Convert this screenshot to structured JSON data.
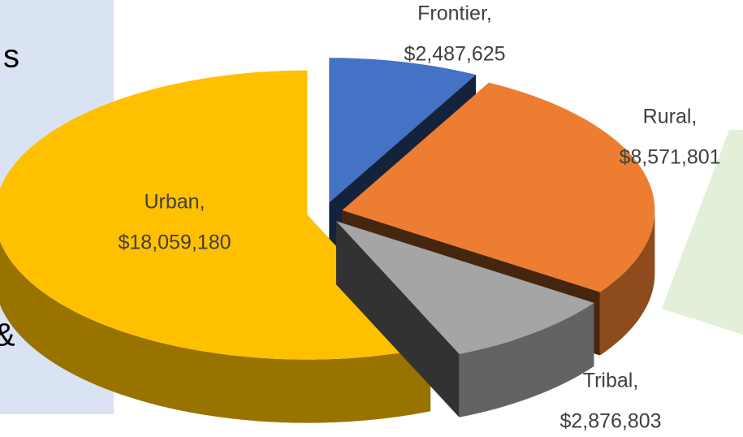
{
  "chart_data": {
    "type": "pie3d",
    "categories": [
      "Frontier,",
      "Rural,",
      "Tribal,",
      "Urban,"
    ],
    "values": [
      2487625,
      8571801,
      2876803,
      18059180
    ],
    "value_labels": [
      "$2,487,625",
      "$8,571,801",
      "$2,876,803",
      "$18,059,180"
    ],
    "colors": [
      "#4472c4",
      "#ed7d31",
      "#a5a5a5",
      "#ffc000"
    ],
    "exploded": true
  },
  "side_panel": {
    "text_fragments": [
      "s",
      "&"
    ]
  }
}
